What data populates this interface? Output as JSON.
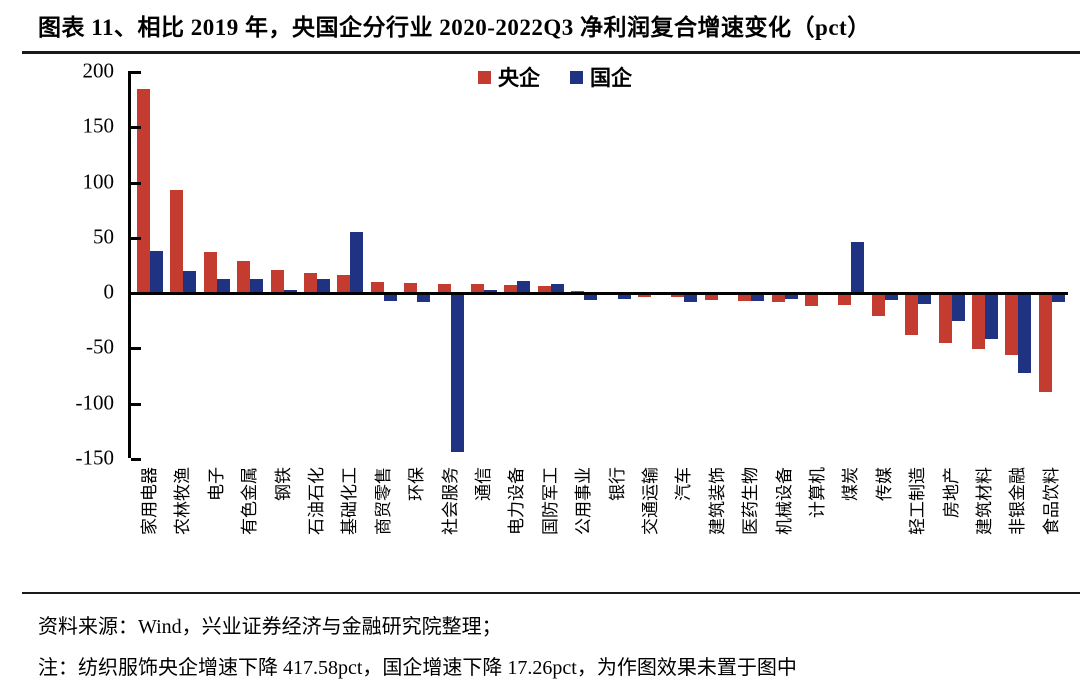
{
  "title": "图表 11、相比 2019 年，央国企分行业 2020-2022Q3 净利润复合增速变化（pct）",
  "legend": {
    "series1_label": "央企",
    "series2_label": "国企"
  },
  "colors": {
    "central": "#c43c30",
    "state": "#203282",
    "axis": "#000000"
  },
  "source_line": "资料来源：Wind，兴业证券经济与金融研究院整理；",
  "note_line": "注：纺织服饰央企增速下降 417.58pct，国企增速下降 17.26pct，为作图效果未置于图中",
  "chart_data": {
    "type": "bar",
    "title": "相比 2019 年，央国企分行业 2020-2022Q3 净利润复合增速变化（pct）",
    "categories": [
      "家用电器",
      "农林牧渔",
      "电子",
      "有色金属",
      "钢铁",
      "石油石化",
      "基础化工",
      "商贸零售",
      "环保",
      "社会服务",
      "通信",
      "电力设备",
      "国防军工",
      "公用事业",
      "银行",
      "交通运输",
      "汽车",
      "建筑装饰",
      "医药生物",
      "机械设备",
      "计算机",
      "煤炭",
      "传媒",
      "轻工制造",
      "房地产",
      "建筑材料",
      "非银金融",
      "食品饮料"
    ],
    "series": [
      {
        "name": "央企",
        "color": "#c43c30",
        "values": [
          185,
          93,
          37,
          29,
          21,
          18,
          16,
          10,
          9,
          8,
          8,
          7,
          6,
          2,
          1,
          -4,
          -4,
          -6,
          -7,
          -8,
          -12,
          -11,
          -21,
          -38,
          -45,
          -51,
          -56,
          -90
        ]
      },
      {
        "name": "国企",
        "color": "#203282",
        "values": [
          38,
          20,
          13,
          13,
          3,
          13,
          55,
          -7,
          -8,
          -144,
          3,
          11,
          8,
          -6,
          -5,
          -1,
          -8,
          -1,
          -7,
          -5,
          -1,
          46,
          -6,
          -10,
          -25,
          -42,
          -72,
          -8
        ]
      }
    ],
    "ylim": [
      -150,
      200
    ],
    "yticks": [
      200,
      150,
      100,
      50,
      0,
      -50,
      -100,
      -150
    ],
    "ylabel": "",
    "xlabel": "",
    "grid": false,
    "legend_position": "top-center"
  }
}
